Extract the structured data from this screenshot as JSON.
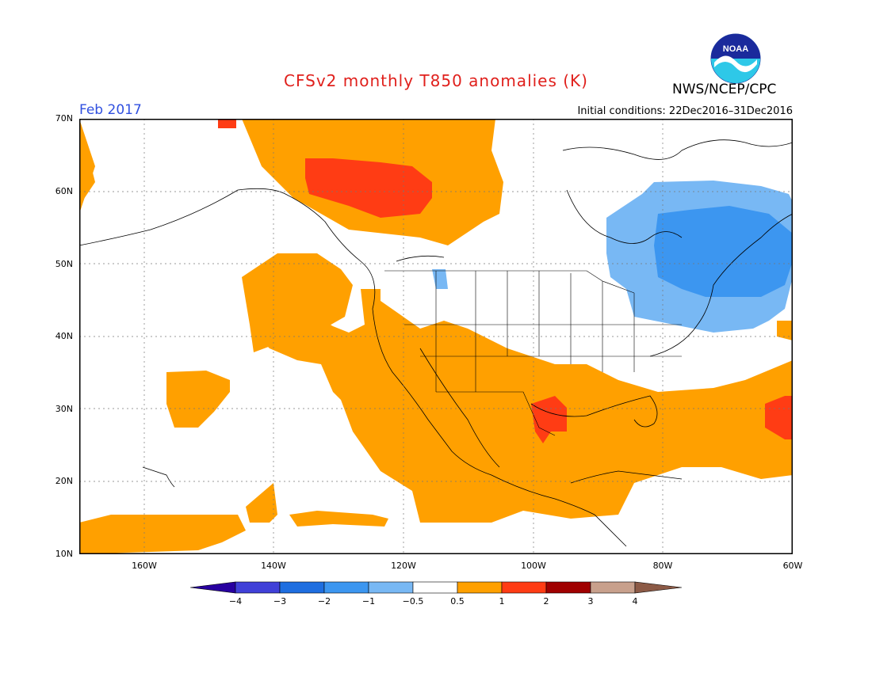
{
  "title": "CFSv2 monthly T850 anomalies (K)",
  "org": "NWS/NCEP/CPC",
  "month": "Feb 2017",
  "initial_conditions": "Initial conditions: 22Dec2016–31Dec2016",
  "logo_text": "NOAA",
  "lat_labels": [
    "70N",
    "60N",
    "50N",
    "40N",
    "30N",
    "20N",
    "10N"
  ],
  "lon_labels": [
    "160W",
    "140W",
    "120W",
    "100W",
    "80W",
    "60W"
  ],
  "colorbar": {
    "labels": [
      "−4",
      "−3",
      "−2",
      "−1",
      "−0.5",
      "0.5",
      "1",
      "2",
      "3",
      "4"
    ],
    "colors": [
      "#2800a0",
      "#4040d8",
      "#1e6ee0",
      "#3c96f0",
      "#78b8f4",
      "#ffffff",
      "#ffa000",
      "#ff3c14",
      "#a00000",
      "#c8a08c",
      "#8c5a46"
    ]
  }
}
